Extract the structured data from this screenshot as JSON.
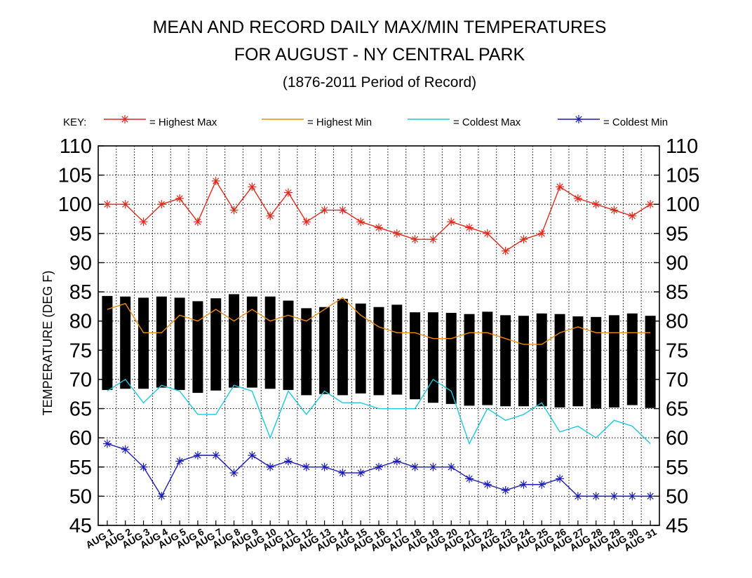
{
  "chart_data": {
    "type": "line",
    "title": "MEAN AND RECORD DAILY MAX/MIN TEMPERATURES",
    "subtitle": "FOR AUGUST - NY CENTRAL PARK",
    "period": "(1876-2011 Period of Record)",
    "ylabel": "TEMPERATURE (DEG F)",
    "ylim": [
      45,
      110
    ],
    "yticks": [
      45,
      50,
      55,
      60,
      65,
      70,
      75,
      80,
      85,
      90,
      95,
      100,
      105,
      110
    ],
    "grid": true,
    "legend": {
      "key_label": "KEY:",
      "placement": "top",
      "entries": [
        {
          "label": "= Highest Max",
          "color": "#e0281a",
          "marker": "asterisk"
        },
        {
          "label": "= Highest Min",
          "color": "#f08c10",
          "marker": "none"
        },
        {
          "label": "= Coldest Max",
          "color": "#1ec8dc",
          "marker": "none"
        },
        {
          "label": "= Coldest Min",
          "color": "#1a1ab4",
          "marker": "asterisk"
        }
      ]
    },
    "categories": [
      "AUG 1",
      "AUG 2",
      "AUG 3",
      "AUG 4",
      "AUG 5",
      "AUG 6",
      "AUG 7",
      "AUG 8",
      "AUG 9",
      "AUG 10",
      "AUG 11",
      "AUG 12",
      "AUG 13",
      "AUG 14",
      "AUG 15",
      "AUG 16",
      "AUG 17",
      "AUG 18",
      "AUG 19",
      "AUG 20",
      "AUG 21",
      "AUG 22",
      "AUG 23",
      "AUG 24",
      "AUG 25",
      "AUG 26",
      "AUG 27",
      "AUG 28",
      "AUG 29",
      "AUG 30",
      "AUG 31"
    ],
    "mean_range": {
      "color": "#000000",
      "mean_max": [
        84.3,
        84.2,
        84.0,
        84.2,
        84.0,
        83.4,
        83.9,
        84.6,
        84.2,
        84.2,
        83.5,
        82.2,
        82.4,
        83.8,
        83.0,
        82.4,
        82.8,
        81.5,
        81.5,
        81.4,
        81.2,
        81.6,
        81.0,
        80.9,
        81.3,
        81.2,
        80.8,
        80.7,
        81.0,
        81.3,
        80.9
      ],
      "mean_min": [
        68.2,
        68.4,
        68.4,
        68.6,
        68.2,
        67.7,
        68.1,
        68.6,
        68.6,
        68.4,
        68.2,
        67.3,
        67.5,
        67.3,
        67.6,
        67.3,
        67.4,
        66.6,
        66.0,
        65.8,
        65.5,
        65.6,
        65.4,
        65.4,
        65.4,
        65.2,
        65.4,
        65.0,
        65.2,
        65.6,
        65.1
      ]
    },
    "series": [
      {
        "name": "Highest Max",
        "color": "#e0281a",
        "marker": "asterisk",
        "values": [
          100,
          100,
          97,
          100,
          101,
          97,
          104,
          99,
          103,
          98,
          102,
          97,
          99,
          99,
          97,
          96,
          95,
          94,
          94,
          97,
          96,
          95,
          92,
          94,
          95,
          103,
          101,
          100,
          99,
          98,
          100
        ]
      },
      {
        "name": "Highest Min",
        "color": "#f08c10",
        "marker": "none",
        "values": [
          82,
          83,
          78,
          78,
          81,
          80,
          82,
          80,
          82,
          80,
          81,
          80,
          82,
          84,
          81,
          79,
          78,
          78,
          77,
          77,
          78,
          78,
          77,
          76,
          76,
          78,
          79,
          78,
          78,
          78,
          78
        ]
      },
      {
        "name": "Coldest Max",
        "color": "#1ec8dc",
        "marker": "none",
        "values": [
          68,
          70,
          66,
          69,
          68,
          64,
          64,
          69,
          68,
          60,
          68,
          64,
          68,
          66,
          66,
          65,
          65,
          65,
          70,
          68,
          59,
          65,
          63,
          64,
          66,
          61,
          62,
          60,
          63,
          62,
          59
        ]
      },
      {
        "name": "Coldest Min",
        "color": "#1a1ab4",
        "marker": "asterisk",
        "values": [
          59,
          58,
          55,
          50,
          56,
          57,
          57,
          54,
          57,
          55,
          56,
          55,
          55,
          54,
          54,
          55,
          56,
          55,
          55,
          55,
          53,
          52,
          51,
          52,
          52,
          53,
          50,
          50,
          50,
          50,
          50
        ]
      }
    ]
  }
}
